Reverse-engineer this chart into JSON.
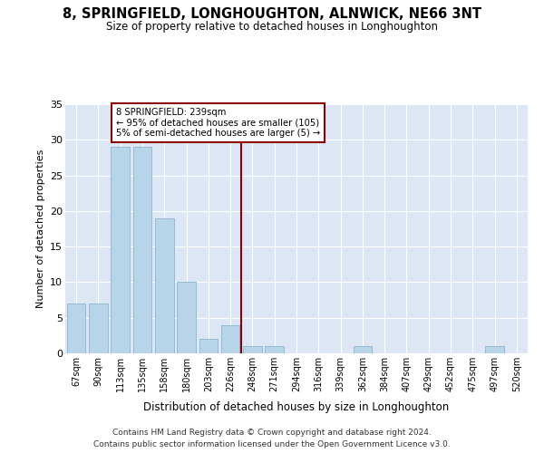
{
  "title": "8, SPRINGFIELD, LONGHOUGHTON, ALNWICK, NE66 3NT",
  "subtitle": "Size of property relative to detached houses in Longhoughton",
  "xlabel": "Distribution of detached houses by size in Longhoughton",
  "ylabel": "Number of detached properties",
  "categories": [
    "67sqm",
    "90sqm",
    "113sqm",
    "135sqm",
    "158sqm",
    "180sqm",
    "203sqm",
    "226sqm",
    "248sqm",
    "271sqm",
    "294sqm",
    "316sqm",
    "339sqm",
    "362sqm",
    "384sqm",
    "407sqm",
    "429sqm",
    "452sqm",
    "475sqm",
    "497sqm",
    "520sqm"
  ],
  "values": [
    7,
    7,
    29,
    29,
    19,
    10,
    2,
    4,
    1,
    1,
    0,
    0,
    0,
    1,
    0,
    0,
    0,
    0,
    0,
    1,
    0
  ],
  "bar_color": "#b8d4e8",
  "bar_edge_color": "#8ab4d0",
  "vline_color": "#8b0000",
  "annotation_lines": [
    "8 SPRINGFIELD: 239sqm",
    "← 95% of detached houses are smaller (105)",
    "5% of semi-detached houses are larger (5) →"
  ],
  "annotation_box_color": "#8b0000",
  "ylim": [
    0,
    35
  ],
  "yticks": [
    0,
    5,
    10,
    15,
    20,
    25,
    30,
    35
  ],
  "bg_color": "#dce6f5",
  "footer_line1": "Contains HM Land Registry data © Crown copyright and database right 2024.",
  "footer_line2": "Contains public sector information licensed under the Open Government Licence v3.0."
}
